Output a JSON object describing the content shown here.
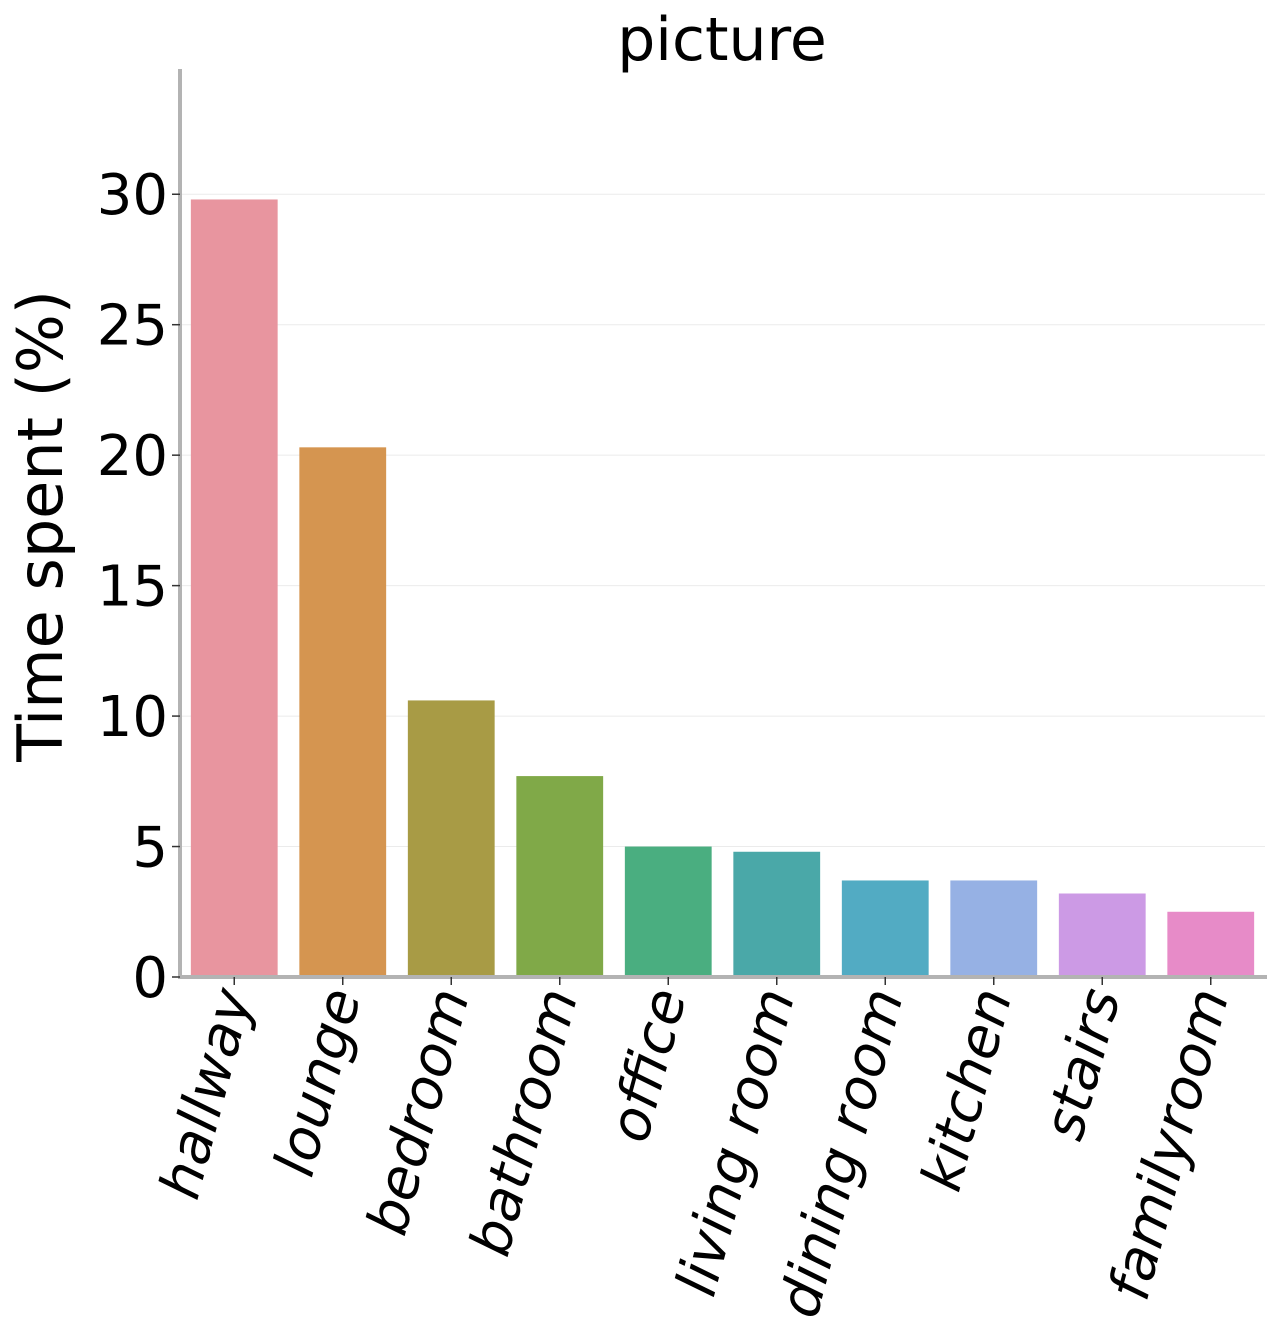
{
  "chart_data": {
    "type": "bar",
    "title": "picture",
    "xlabel": "",
    "ylabel": "Time spent (%)",
    "categories": [
      "hallway",
      "lounge",
      "bedroom",
      "bathroom",
      "office",
      "living room",
      "dining room",
      "kitchen",
      "stairs",
      "familyroom"
    ],
    "values": [
      29.8,
      20.3,
      10.6,
      7.7,
      5.0,
      4.8,
      3.7,
      3.7,
      3.2,
      2.5
    ],
    "colors": [
      "#e8959f",
      "#d59550",
      "#a89b45",
      "#80a948",
      "#4aae80",
      "#4aa8a8",
      "#52abc3",
      "#96b1e4",
      "#cc9ae5",
      "#e78bc8"
    ],
    "ylim": [
      0,
      34.8
    ],
    "yticks": [
      "0",
      "5",
      "10",
      "15",
      "20",
      "25",
      "30"
    ],
    "grid": true,
    "legend": "none"
  }
}
